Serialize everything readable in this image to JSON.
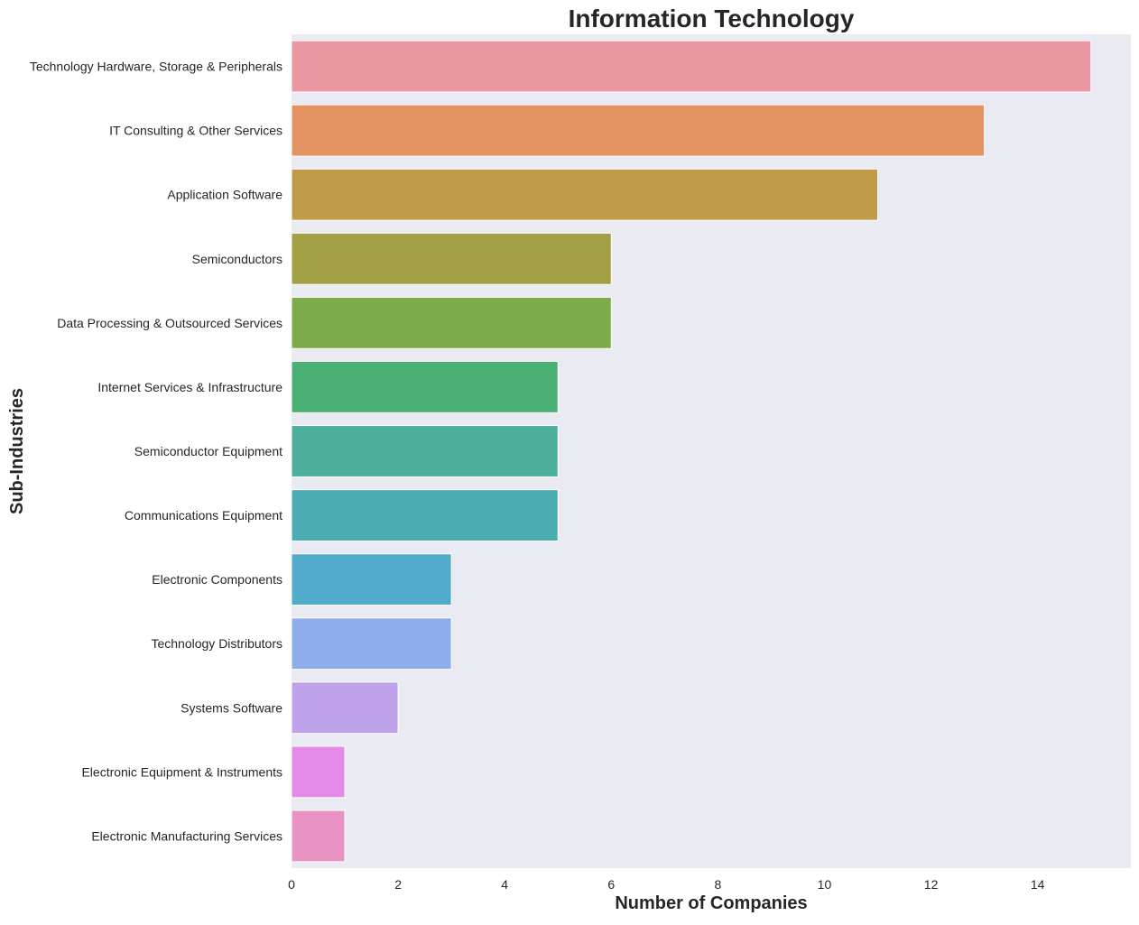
{
  "chart_data": {
    "type": "bar",
    "orientation": "horizontal",
    "title": "Information Technology",
    "xlabel": "Number of Companies",
    "ylabel": "Sub-Industries",
    "xlim": [
      0,
      15.75
    ],
    "xticks": [
      0,
      2,
      4,
      6,
      8,
      10,
      12,
      14
    ],
    "grid": false,
    "background": "#eaeaf2",
    "categories": [
      "Technology Hardware, Storage & Peripherals",
      "IT Consulting & Other Services",
      "Application Software",
      "Semiconductors",
      "Data Processing & Outsourced Services",
      "Internet Services & Infrastructure",
      "Semiconductor Equipment",
      "Communications Equipment",
      "Electronic Components",
      "Technology Distributors",
      "Systems Software",
      "Electronic Equipment & Instruments",
      "Electronic Manufacturing Services"
    ],
    "values": [
      15,
      13,
      11,
      6,
      6,
      5,
      5,
      5,
      3,
      3,
      2,
      1,
      1
    ],
    "colors": [
      "#ea96a3",
      "#e39262",
      "#c09c48",
      "#a1a045",
      "#7dab4a",
      "#4ab073",
      "#4caf9c",
      "#4bacb1",
      "#52abca",
      "#8eadeb",
      "#bea2ea",
      "#e48ae8",
      "#e893c4"
    ]
  }
}
